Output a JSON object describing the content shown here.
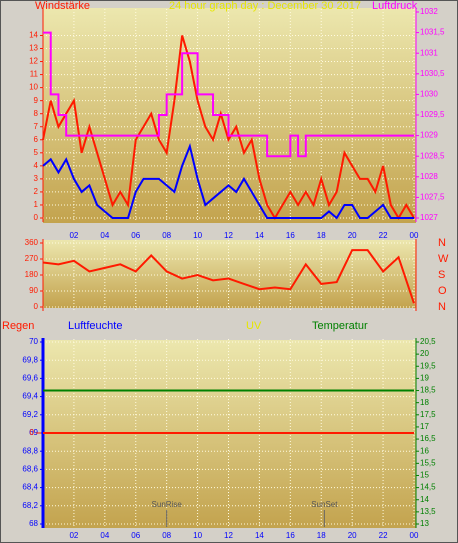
{
  "chart_data": [
    {
      "type": "line",
      "title": "24 hour graph day : December 30 2017",
      "y_label": "Windstärke",
      "x": [
        0,
        0.5,
        1,
        1.5,
        2,
        2.5,
        3,
        3.5,
        4,
        4.5,
        5,
        5.5,
        6,
        6.5,
        7,
        7.5,
        8,
        8.5,
        9,
        9.5,
        10,
        10.5,
        11,
        11.5,
        12,
        12.5,
        13,
        13.5,
        14,
        14.5,
        15,
        15.5,
        16,
        16.5,
        17,
        17.5,
        18,
        18.5,
        19,
        19.5,
        20,
        20.5,
        21,
        21.5,
        22,
        22.5,
        23,
        23.5,
        24
      ],
      "xlim": [
        0,
        24
      ],
      "xticks": [
        {
          "value": 2,
          "label": "02"
        },
        {
          "value": 4,
          "label": "04"
        },
        {
          "value": 6,
          "label": "06"
        },
        {
          "value": 8,
          "label": "08"
        },
        10,
        12,
        14,
        16,
        18,
        20,
        22,
        {
          "value": 24,
          "label": "00"
        }
      ],
      "ylim": [
        0,
        15.8
      ],
      "yticks": [
        0,
        1,
        2,
        3,
        4,
        5,
        6,
        7,
        8,
        9,
        10,
        11,
        12,
        13,
        14
      ],
      "y2lim": [
        1027,
        1032
      ],
      "y2ticks": [
        1027,
        {
          "value": 1027.5,
          "label": "1027,5"
        },
        1028,
        {
          "value": 1028.5,
          "label": "1028,5"
        },
        1029,
        {
          "value": 1029.5,
          "label": "1029,5"
        },
        1030,
        {
          "value": 1030.5,
          "label": "1030,5"
        },
        1031,
        {
          "value": 1031.5,
          "label": "1031,5"
        },
        1032
      ],
      "grid": true,
      "series": [
        {
          "color": "#ff1a00",
          "values": [
            6,
            9,
            7,
            8,
            9,
            5,
            7,
            5,
            3,
            1,
            2,
            1,
            6,
            7,
            8,
            6,
            5,
            9,
            14,
            12,
            9,
            7,
            6,
            8,
            6,
            7,
            5,
            6,
            3,
            1,
            0,
            1,
            2,
            1,
            2,
            1,
            3,
            1,
            2,
            5,
            4,
            3,
            3,
            2,
            4,
            1,
            0,
            1,
            0
          ]
        },
        {
          "color": "#0000ff",
          "values": [
            4,
            4.5,
            3.5,
            4.5,
            3,
            2,
            2.5,
            1,
            0.5,
            0,
            0,
            0,
            2,
            3,
            3,
            3,
            2.5,
            2,
            4,
            5.5,
            3,
            1,
            1.5,
            2,
            2.5,
            2,
            3,
            2,
            1,
            0,
            0,
            0,
            0,
            0,
            0,
            0,
            0,
            0.5,
            0,
            1,
            1,
            0,
            0,
            0.5,
            1,
            0,
            0,
            0,
            0
          ]
        },
        {
          "name": "Luftdruck",
          "color": "#ff00ff",
          "axis": "y2",
          "step": true,
          "values": [
            1031.5,
            1030,
            1029.5,
            1029,
            1029,
            1029,
            1029,
            1029,
            1029,
            1029,
            1029,
            1029,
            1029,
            1029,
            1029,
            1029.5,
            1030,
            1030,
            1031,
            1031,
            1030,
            1030,
            1029.5,
            1029.5,
            1029,
            1029,
            1029,
            1029,
            1029,
            1028.5,
            1028.5,
            1028.5,
            1029,
            1028.5,
            1029,
            1029,
            1029,
            1029,
            1029,
            1029,
            1029,
            1029,
            1029,
            1029,
            1029,
            1029,
            1029,
            1029,
            1029
          ]
        }
      ]
    },
    {
      "type": "line",
      "x": [
        0,
        1,
        2,
        3,
        4,
        5,
        6,
        7,
        8,
        9,
        10,
        11,
        12,
        13,
        14,
        15,
        16,
        17,
        18,
        19,
        20,
        21,
        22,
        23,
        24
      ],
      "xlim": [
        0,
        24
      ],
      "ylim": [
        0,
        360
      ],
      "yticks": [
        0,
        90,
        180,
        270,
        360
      ],
      "direction_labels": [
        "N",
        "O",
        "S",
        "W",
        "N"
      ],
      "grid": true,
      "series": [
        {
          "color": "#ff1a00",
          "values": [
            250,
            240,
            260,
            200,
            220,
            240,
            200,
            290,
            200,
            160,
            180,
            150,
            160,
            130,
            100,
            110,
            100,
            240,
            130,
            140,
            320,
            320,
            200,
            280,
            20
          ]
        }
      ]
    },
    {
      "type": "line",
      "x": [
        0,
        24
      ],
      "xlim": [
        0,
        24
      ],
      "xticks": [
        {
          "value": 2,
          "label": "02"
        },
        {
          "value": 4,
          "label": "04"
        },
        {
          "value": 6,
          "label": "06"
        },
        {
          "value": 8,
          "label": "08"
        },
        10,
        12,
        14,
        16,
        18,
        20,
        22,
        {
          "value": 24,
          "label": "00"
        }
      ],
      "ylim": [
        68,
        70
      ],
      "yticks": [
        68,
        {
          "value": 68.2,
          "label": "68,2"
        },
        {
          "value": 68.4,
          "label": "68,4"
        },
        {
          "value": 68.6,
          "label": "68,6"
        },
        {
          "value": 68.8,
          "label": "68,8"
        },
        69,
        {
          "value": 69.2,
          "label": "69,2"
        },
        {
          "value": 69.4,
          "label": "69,4"
        },
        {
          "value": 69.6,
          "label": "69,6"
        },
        {
          "value": 69.8,
          "label": "69,8"
        },
        70
      ],
      "y2lim": [
        13,
        20.5
      ],
      "y2ticks": [
        13,
        {
          "value": 13.5,
          "label": "13,5"
        },
        14,
        {
          "value": 14.5,
          "label": "14,5"
        },
        15,
        {
          "value": 15.5,
          "label": "15,5"
        },
        16,
        {
          "value": 16.5,
          "label": "16,5"
        },
        17,
        {
          "value": 17.5,
          "label": "17,5"
        },
        18,
        {
          "value": 18.5,
          "label": "18,5"
        },
        19,
        {
          "value": 19.5,
          "label": "19,5"
        },
        20,
        {
          "value": 20.5,
          "label": "20,5"
        }
      ],
      "y3lim": [
        -1,
        1
      ],
      "y3ticks": [
        0
      ],
      "grid": true,
      "series": [
        {
          "name": "Regen",
          "color": "#ff1a00",
          "axis": "y3",
          "values": [
            0,
            0
          ]
        },
        {
          "name": "Luftfeuchte",
          "color": "#0000ff",
          "values": [
            null,
            null
          ]
        },
        {
          "name": "UV",
          "color": "#e6e600",
          "values": [
            null,
            null
          ]
        },
        {
          "name": "Temperatur",
          "color": "#008000",
          "axis": "y2",
          "values": [
            18.5,
            18.5
          ]
        }
      ],
      "annotations": [
        {
          "text": "SunRise",
          "x": 8
        },
        {
          "text": "SunSet",
          "x": 18.2
        }
      ]
    }
  ]
}
